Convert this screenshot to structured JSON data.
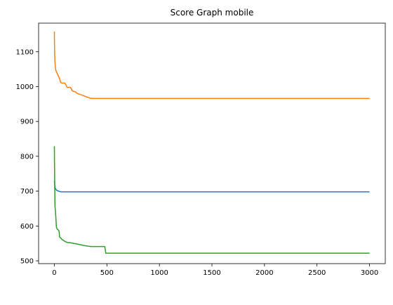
{
  "chart_data": {
    "type": "line",
    "title": "Score Graph mobile",
    "xlabel": "",
    "ylabel": "",
    "xlim": [
      -150,
      3150
    ],
    "ylim": [
      492,
      1182
    ],
    "xticks": [
      0,
      500,
      1000,
      1500,
      2000,
      2500,
      3000
    ],
    "yticks": [
      500,
      600,
      700,
      800,
      900,
      1000,
      1100
    ],
    "grid": false,
    "legend": "none",
    "series": [
      {
        "color": "#1f77b4",
        "x": [
          0,
          3,
          6,
          10,
          15,
          20,
          30,
          40,
          60,
          100,
          200,
          500,
          1000,
          2000,
          3000
        ],
        "y": [
          730,
          720,
          712,
          707,
          705,
          703,
          701,
          700,
          698,
          698,
          698,
          698,
          698,
          698,
          698
        ]
      },
      {
        "color": "#ff7f0e",
        "x": [
          0,
          2,
          4,
          6,
          8,
          12,
          16,
          20,
          25,
          30,
          40,
          50,
          60,
          70,
          100,
          110,
          120,
          150,
          160,
          170,
          200,
          210,
          220,
          240,
          260,
          280,
          300,
          320,
          340,
          360,
          500,
          1000,
          2000,
          3000
        ],
        "y": [
          1158,
          1105,
          1082,
          1070,
          1060,
          1050,
          1045,
          1042,
          1040,
          1035,
          1030,
          1022,
          1012,
          1010,
          1010,
          1005,
          998,
          998,
          995,
          988,
          985,
          982,
          980,
          978,
          976,
          974,
          971,
          969,
          967,
          966,
          966,
          966,
          966,
          966
        ]
      },
      {
        "color": "#2ca02c",
        "x": [
          0,
          2,
          4,
          6,
          8,
          10,
          15,
          20,
          25,
          30,
          40,
          45,
          50,
          60,
          70,
          80,
          100,
          120,
          150,
          200,
          220,
          250,
          300,
          350,
          480,
          490,
          500,
          1000,
          2000,
          3000
        ],
        "y": [
          829,
          760,
          700,
          655,
          650,
          645,
          620,
          595,
          593,
          590,
          588,
          585,
          568,
          566,
          562,
          560,
          556,
          553,
          552,
          549,
          548,
          546,
          543,
          541,
          541,
          522,
          522,
          522,
          522,
          522
        ]
      }
    ]
  }
}
